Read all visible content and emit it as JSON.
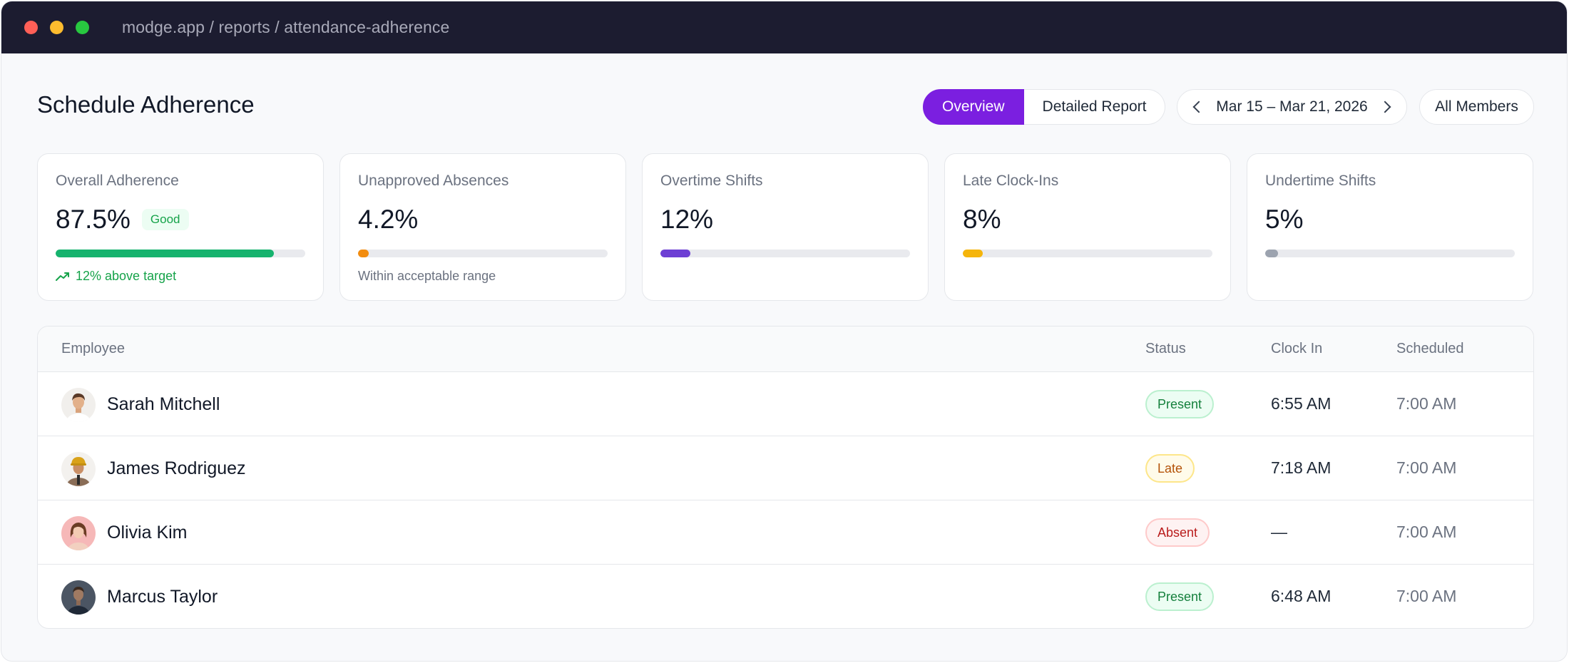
{
  "window": {
    "url": "modge.app / reports / attendance-adherence"
  },
  "header": {
    "title": "Schedule Adherence",
    "tabs": [
      {
        "label": "Overview",
        "active": true
      },
      {
        "label": "Detailed Report",
        "active": false
      }
    ],
    "date_range": "Mar 15 – Mar 21, 2026",
    "members_filter": "All Members"
  },
  "cards": [
    {
      "label": "Overall Adherence",
      "value": "87.5%",
      "badge": "Good",
      "progress": 0.875,
      "color": "#16b36e",
      "footer": "12% above target",
      "footer_icon": "trending-up-icon"
    },
    {
      "label": "Unapproved Absences",
      "value": "4.2%",
      "progress": 0.042,
      "color": "#f28c0f",
      "footer": "Within acceptable range"
    },
    {
      "label": "Overtime Shifts",
      "value": "12%",
      "progress": 0.12,
      "color": "#6d3fd4",
      "footer": ""
    },
    {
      "label": "Late Clock-Ins",
      "value": "8%",
      "progress": 0.08,
      "color": "#f5b50b",
      "footer": ""
    },
    {
      "label": "Undertime Shifts",
      "value": "5%",
      "progress": 0.05,
      "color": "#9ca3af",
      "footer": ""
    }
  ],
  "table": {
    "columns": [
      "Employee",
      "Status",
      "Clock In",
      "Scheduled"
    ],
    "rows": [
      {
        "name": "Sarah Mitchell",
        "status": "Present",
        "status_type": "present",
        "clock_in": "6:55 AM",
        "scheduled": "7:00 AM"
      },
      {
        "name": "James Rodriguez",
        "status": "Late",
        "status_type": "late",
        "clock_in": "7:18 AM",
        "scheduled": "7:00 AM"
      },
      {
        "name": "Olivia Kim",
        "status": "Absent",
        "status_type": "absent",
        "clock_in": "—",
        "scheduled": "7:00 AM"
      },
      {
        "name": "Marcus Taylor",
        "status": "Present",
        "status_type": "present",
        "clock_in": "6:48 AM",
        "scheduled": "7:00 AM"
      }
    ]
  }
}
